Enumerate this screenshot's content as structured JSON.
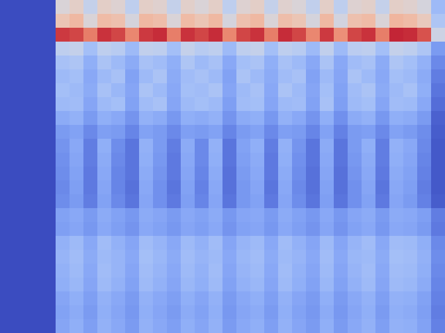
{
  "chart_data": {
    "type": "heatmap",
    "tick_labels": false,
    "zlim": [
      0,
      1
    ],
    "cells": [
      [
        0,
        0,
        0,
        0,
        0.5,
        0.55,
        0.42,
        0.55,
        0.52,
        0.4,
        0.55,
        0.53,
        0.42,
        0.54,
        0.5,
        0.55,
        0.4,
        0.52,
        0.55,
        0.42,
        0.53,
        0.5,
        0.41,
        0.55,
        0.4,
        0.52,
        0.54,
        0.42,
        0.55,
        0.53,
        0.48,
        0.3
      ],
      [
        0,
        0,
        0,
        0,
        0.6,
        0.65,
        0.5,
        0.64,
        0.62,
        0.48,
        0.65,
        0.63,
        0.5,
        0.64,
        0.6,
        0.65,
        0.48,
        0.62,
        0.65,
        0.5,
        0.63,
        0.6,
        0.48,
        0.65,
        0.47,
        0.62,
        0.64,
        0.5,
        0.66,
        0.64,
        0.58,
        0.35
      ],
      [
        0,
        0,
        0,
        0,
        0.92,
        0.9,
        0.8,
        0.93,
        0.9,
        0.78,
        0.92,
        0.94,
        0.8,
        0.93,
        0.9,
        0.94,
        0.78,
        0.9,
        0.93,
        0.8,
        0.94,
        0.9,
        0.78,
        0.92,
        0.76,
        0.9,
        0.93,
        0.8,
        0.95,
        0.94,
        0.88,
        0.45
      ],
      [
        0,
        0,
        0,
        0,
        0.4,
        0.42,
        0.32,
        0.4,
        0.38,
        0.3,
        0.41,
        0.4,
        0.32,
        0.42,
        0.38,
        0.4,
        0.3,
        0.4,
        0.42,
        0.32,
        0.4,
        0.38,
        0.3,
        0.41,
        0.3,
        0.39,
        0.4,
        0.32,
        0.42,
        0.4,
        0.35,
        0.2
      ],
      [
        0,
        0,
        0,
        0,
        0.33,
        0.35,
        0.26,
        0.34,
        0.3,
        0.25,
        0.33,
        0.31,
        0.26,
        0.35,
        0.3,
        0.33,
        0.24,
        0.32,
        0.34,
        0.26,
        0.33,
        0.3,
        0.24,
        0.34,
        0.24,
        0.31,
        0.33,
        0.25,
        0.35,
        0.32,
        0.27,
        0.15
      ],
      [
        0,
        0,
        0,
        0,
        0.3,
        0.32,
        0.24,
        0.3,
        0.33,
        0.22,
        0.3,
        0.34,
        0.25,
        0.31,
        0.33,
        0.3,
        0.22,
        0.34,
        0.3,
        0.25,
        0.31,
        0.33,
        0.22,
        0.3,
        0.23,
        0.34,
        0.3,
        0.24,
        0.32,
        0.3,
        0.25,
        0.12
      ],
      [
        0,
        0,
        0,
        0,
        0.32,
        0.3,
        0.25,
        0.33,
        0.29,
        0.23,
        0.34,
        0.3,
        0.24,
        0.32,
        0.31,
        0.34,
        0.23,
        0.3,
        0.33,
        0.24,
        0.34,
        0.3,
        0.23,
        0.32,
        0.22,
        0.31,
        0.34,
        0.25,
        0.3,
        0.33,
        0.26,
        0.1
      ],
      [
        0,
        0,
        0,
        0,
        0.3,
        0.31,
        0.23,
        0.3,
        0.32,
        0.22,
        0.31,
        0.33,
        0.23,
        0.3,
        0.32,
        0.3,
        0.21,
        0.31,
        0.32,
        0.23,
        0.3,
        0.31,
        0.22,
        0.33,
        0.21,
        0.3,
        0.32,
        0.23,
        0.31,
        0.3,
        0.24,
        0.08
      ],
      [
        0,
        0,
        0,
        0,
        0.25,
        0.27,
        0.2,
        0.26,
        0.24,
        0.18,
        0.27,
        0.25,
        0.19,
        0.26,
        0.25,
        0.27,
        0.18,
        0.25,
        0.26,
        0.19,
        0.27,
        0.24,
        0.18,
        0.26,
        0.17,
        0.25,
        0.27,
        0.19,
        0.26,
        0.25,
        0.2,
        0.05
      ],
      [
        0,
        0,
        0,
        0,
        0.2,
        0.22,
        0.15,
        0.21,
        0.2,
        0.14,
        0.22,
        0.2,
        0.15,
        0.21,
        0.2,
        0.22,
        0.14,
        0.2,
        0.22,
        0.15,
        0.21,
        0.2,
        0.14,
        0.22,
        0.13,
        0.2,
        0.21,
        0.15,
        0.22,
        0.2,
        0.16,
        0.04
      ],
      [
        0,
        0,
        0,
        0,
        0.18,
        0.24,
        0.12,
        0.26,
        0.16,
        0.1,
        0.27,
        0.2,
        0.12,
        0.25,
        0.15,
        0.27,
        0.1,
        0.22,
        0.26,
        0.12,
        0.27,
        0.18,
        0.1,
        0.25,
        0.1,
        0.2,
        0.26,
        0.12,
        0.27,
        0.24,
        0.15,
        0.03
      ],
      [
        0,
        0,
        0,
        0,
        0.17,
        0.23,
        0.12,
        0.25,
        0.15,
        0.1,
        0.26,
        0.19,
        0.11,
        0.24,
        0.15,
        0.26,
        0.1,
        0.21,
        0.25,
        0.11,
        0.26,
        0.17,
        0.1,
        0.24,
        0.1,
        0.19,
        0.25,
        0.12,
        0.26,
        0.23,
        0.14,
        0.03
      ],
      [
        0,
        0,
        0,
        0,
        0.16,
        0.22,
        0.11,
        0.24,
        0.14,
        0.1,
        0.25,
        0.18,
        0.11,
        0.23,
        0.14,
        0.25,
        0.09,
        0.2,
        0.24,
        0.11,
        0.25,
        0.16,
        0.09,
        0.23,
        0.09,
        0.18,
        0.24,
        0.11,
        0.25,
        0.22,
        0.13,
        0.03
      ],
      [
        0,
        0,
        0,
        0,
        0.15,
        0.21,
        0.11,
        0.23,
        0.14,
        0.09,
        0.24,
        0.17,
        0.1,
        0.22,
        0.13,
        0.24,
        0.09,
        0.19,
        0.23,
        0.1,
        0.24,
        0.15,
        0.09,
        0.22,
        0.09,
        0.17,
        0.23,
        0.1,
        0.24,
        0.21,
        0.12,
        0.03
      ],
      [
        0,
        0,
        0,
        0,
        0.16,
        0.2,
        0.12,
        0.22,
        0.15,
        0.1,
        0.23,
        0.17,
        0.11,
        0.21,
        0.14,
        0.23,
        0.1,
        0.19,
        0.22,
        0.11,
        0.23,
        0.16,
        0.1,
        0.21,
        0.1,
        0.17,
        0.22,
        0.11,
        0.23,
        0.2,
        0.13,
        0.04
      ],
      [
        0,
        0,
        0,
        0,
        0.22,
        0.24,
        0.2,
        0.25,
        0.22,
        0.19,
        0.25,
        0.23,
        0.2,
        0.24,
        0.22,
        0.25,
        0.19,
        0.23,
        0.24,
        0.2,
        0.25,
        0.22,
        0.19,
        0.24,
        0.19,
        0.23,
        0.25,
        0.2,
        0.25,
        0.24,
        0.21,
        0.12
      ],
      [
        0,
        0,
        0,
        0,
        0.21,
        0.23,
        0.19,
        0.24,
        0.21,
        0.18,
        0.24,
        0.22,
        0.19,
        0.23,
        0.21,
        0.24,
        0.18,
        0.22,
        0.23,
        0.19,
        0.24,
        0.21,
        0.18,
        0.23,
        0.18,
        0.22,
        0.24,
        0.19,
        0.24,
        0.23,
        0.2,
        0.11
      ],
      [
        0,
        0,
        0,
        0,
        0.27,
        0.3,
        0.24,
        0.31,
        0.27,
        0.23,
        0.31,
        0.28,
        0.24,
        0.3,
        0.27,
        0.31,
        0.23,
        0.28,
        0.3,
        0.24,
        0.31,
        0.27,
        0.23,
        0.3,
        0.23,
        0.28,
        0.31,
        0.24,
        0.31,
        0.3,
        0.26,
        0.15
      ],
      [
        0,
        0,
        0,
        0,
        0.28,
        0.31,
        0.25,
        0.3,
        0.28,
        0.24,
        0.32,
        0.29,
        0.25,
        0.31,
        0.28,
        0.3,
        0.24,
        0.29,
        0.31,
        0.25,
        0.3,
        0.28,
        0.24,
        0.31,
        0.24,
        0.29,
        0.3,
        0.25,
        0.32,
        0.31,
        0.27,
        0.16
      ],
      [
        0,
        0,
        0,
        0,
        0.27,
        0.3,
        0.24,
        0.31,
        0.28,
        0.23,
        0.31,
        0.28,
        0.24,
        0.3,
        0.27,
        0.31,
        0.23,
        0.28,
        0.3,
        0.24,
        0.31,
        0.27,
        0.23,
        0.3,
        0.23,
        0.28,
        0.31,
        0.24,
        0.31,
        0.3,
        0.26,
        0.15
      ],
      [
        0,
        0,
        0,
        0,
        0.26,
        0.29,
        0.23,
        0.3,
        0.27,
        0.22,
        0.3,
        0.27,
        0.23,
        0.29,
        0.26,
        0.3,
        0.22,
        0.27,
        0.29,
        0.23,
        0.3,
        0.26,
        0.22,
        0.29,
        0.22,
        0.27,
        0.3,
        0.23,
        0.3,
        0.29,
        0.25,
        0.14
      ],
      [
        0,
        0,
        0,
        0,
        0.23,
        0.26,
        0.21,
        0.27,
        0.24,
        0.2,
        0.27,
        0.24,
        0.21,
        0.26,
        0.23,
        0.27,
        0.2,
        0.24,
        0.26,
        0.21,
        0.27,
        0.23,
        0.2,
        0.26,
        0.2,
        0.24,
        0.27,
        0.21,
        0.27,
        0.26,
        0.22,
        0.13
      ],
      [
        0,
        0,
        0,
        0,
        0.22,
        0.25,
        0.2,
        0.26,
        0.23,
        0.19,
        0.26,
        0.23,
        0.2,
        0.25,
        0.22,
        0.26,
        0.19,
        0.23,
        0.25,
        0.2,
        0.26,
        0.22,
        0.19,
        0.25,
        0.19,
        0.23,
        0.26,
        0.2,
        0.26,
        0.25,
        0.21,
        0.12
      ],
      [
        0,
        0,
        0,
        0,
        0.23,
        0.26,
        0.21,
        0.27,
        0.24,
        0.2,
        0.27,
        0.24,
        0.21,
        0.26,
        0.23,
        0.27,
        0.2,
        0.24,
        0.26,
        0.21,
        0.27,
        0.23,
        0.2,
        0.26,
        0.2,
        0.24,
        0.27,
        0.21,
        0.27,
        0.26,
        0.22,
        0.13
      ]
    ]
  }
}
